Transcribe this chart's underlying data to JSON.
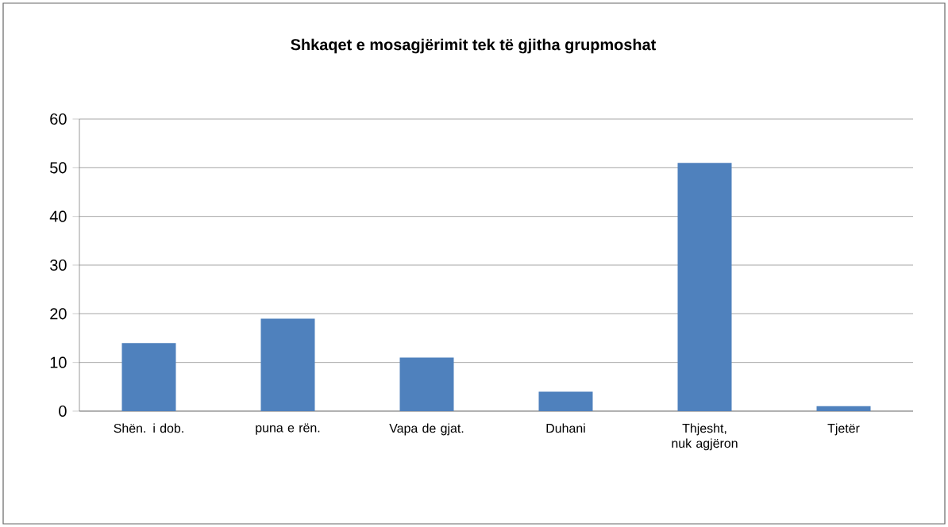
{
  "chart_data": {
    "type": "bar",
    "title": "Shkaqet e mosagjërimit tek të gjitha grupmoshat",
    "categories": [
      "Shën. i dob.",
      "puna e rën.",
      "Vapa de gjat.",
      "Duhani",
      "Thjesht, nuk agjëron",
      "Tjetër"
    ],
    "values": [
      14,
      19,
      11,
      4,
      51,
      1
    ],
    "color": "#4f81bd",
    "ylim": [
      0,
      60
    ],
    "yticks": [
      0,
      10,
      20,
      30,
      40,
      50,
      60
    ],
    "grid": "y"
  }
}
